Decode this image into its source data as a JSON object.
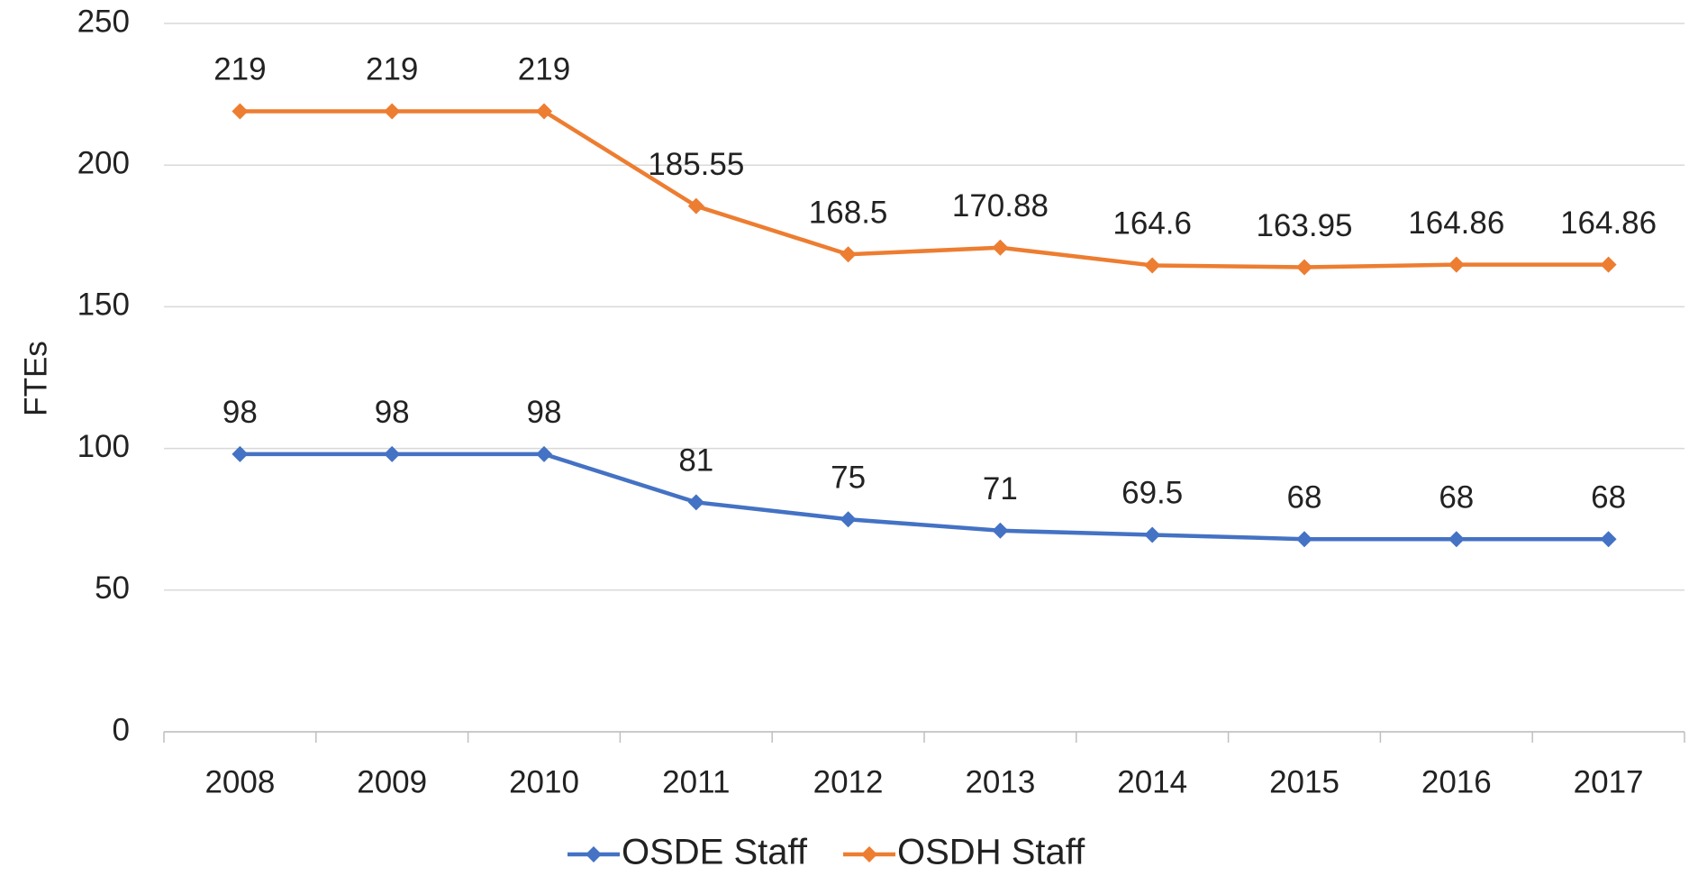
{
  "chart_data": {
    "type": "line",
    "y_label": "FTEs",
    "categories": [
      "2008",
      "2009",
      "2010",
      "2011",
      "2012",
      "2013",
      "2014",
      "2015",
      "2016",
      "2017"
    ],
    "series": [
      {
        "name": "OSDE Staff",
        "color": "#4472c4",
        "values": [
          98,
          98,
          98,
          81,
          75,
          71,
          69.5,
          68,
          68,
          68
        ]
      },
      {
        "name": "OSDH Staff",
        "color": "#ed7d31",
        "values": [
          219,
          219,
          219,
          185.55,
          168.5,
          170.88,
          164.6,
          163.95,
          164.86,
          164.86
        ]
      }
    ],
    "ylim": [
      0,
      250
    ],
    "yticks": [
      0,
      50,
      100,
      150,
      200,
      250
    ],
    "grid": true,
    "legend": "bottom"
  }
}
